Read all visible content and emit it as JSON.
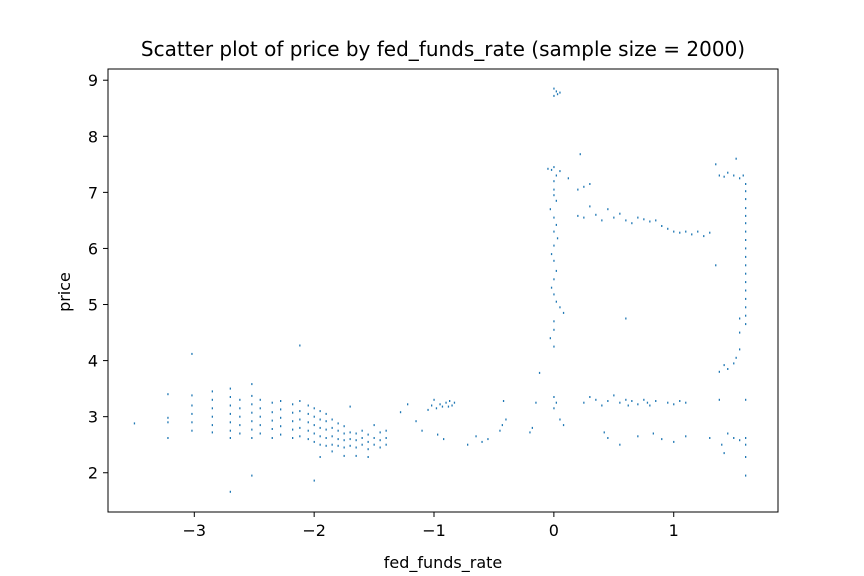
{
  "chart_data": {
    "type": "scatter",
    "title": "Scatter plot of price by fed_funds_rate (sample size = 2000)",
    "xlabel": "fed_funds_rate",
    "ylabel": "price",
    "xlim": [
      -3.72,
      1.87
    ],
    "ylim": [
      1.3,
      9.2
    ],
    "xticks": [
      -3,
      -2,
      -1,
      0,
      1
    ],
    "xtick_labels": [
      "−3",
      "−2",
      "−1",
      "0",
      "1"
    ],
    "yticks": [
      2,
      3,
      4,
      5,
      6,
      7,
      8,
      9
    ],
    "ytick_labels": [
      "2",
      "3",
      "4",
      "5",
      "6",
      "7",
      "8",
      "9"
    ],
    "grid": false,
    "legend": "none",
    "marker": "pixel",
    "color": "#1f77b4",
    "series": [
      {
        "values": [
          [
            -3.5,
            2.88
          ],
          [
            -3.22,
            2.62
          ],
          [
            -3.22,
            2.9
          ],
          [
            -3.22,
            2.98
          ],
          [
            -3.22,
            3.4
          ],
          [
            -3.02,
            4.12
          ],
          [
            -3.02,
            2.75
          ],
          [
            -3.02,
            2.9
          ],
          [
            -3.02,
            3.05
          ],
          [
            -3.02,
            3.2
          ],
          [
            -3.02,
            3.38
          ],
          [
            -2.85,
            2.72
          ],
          [
            -2.85,
            2.85
          ],
          [
            -2.85,
            3.0
          ],
          [
            -2.85,
            3.15
          ],
          [
            -2.85,
            3.3
          ],
          [
            -2.85,
            3.45
          ],
          [
            -2.7,
            2.62
          ],
          [
            -2.7,
            2.75
          ],
          [
            -2.7,
            2.9
          ],
          [
            -2.7,
            3.05
          ],
          [
            -2.7,
            3.2
          ],
          [
            -2.7,
            3.35
          ],
          [
            -2.7,
            3.5
          ],
          [
            -2.7,
            1.66
          ],
          [
            -2.62,
            2.7
          ],
          [
            -2.62,
            2.85
          ],
          [
            -2.62,
            3.0
          ],
          [
            -2.62,
            3.15
          ],
          [
            -2.62,
            3.3
          ],
          [
            -2.52,
            2.62
          ],
          [
            -2.52,
            2.77
          ],
          [
            -2.52,
            2.92
          ],
          [
            -2.52,
            3.07
          ],
          [
            -2.52,
            3.22
          ],
          [
            -2.52,
            3.37
          ],
          [
            -2.52,
            3.58
          ],
          [
            -2.52,
            1.95
          ],
          [
            -2.45,
            2.7
          ],
          [
            -2.45,
            2.85
          ],
          [
            -2.45,
            3.0
          ],
          [
            -2.45,
            3.15
          ],
          [
            -2.45,
            3.3
          ],
          [
            -2.35,
            2.62
          ],
          [
            -2.35,
            2.78
          ],
          [
            -2.35,
            2.93
          ],
          [
            -2.35,
            3.08
          ],
          [
            -2.35,
            3.25
          ],
          [
            -2.28,
            2.68
          ],
          [
            -2.28,
            2.83
          ],
          [
            -2.28,
            2.98
          ],
          [
            -2.28,
            3.13
          ],
          [
            -2.28,
            3.28
          ],
          [
            -2.18,
            2.62
          ],
          [
            -2.18,
            2.77
          ],
          [
            -2.18,
            2.92
          ],
          [
            -2.18,
            3.07
          ],
          [
            -2.18,
            3.22
          ],
          [
            -2.12,
            2.65
          ],
          [
            -2.12,
            2.8
          ],
          [
            -2.12,
            2.95
          ],
          [
            -2.12,
            3.1
          ],
          [
            -2.12,
            3.28
          ],
          [
            -2.12,
            4.27
          ],
          [
            -2.05,
            2.6
          ],
          [
            -2.05,
            2.75
          ],
          [
            -2.05,
            2.9
          ],
          [
            -2.05,
            3.05
          ],
          [
            -2.05,
            3.2
          ],
          [
            -2.0,
            2.55
          ],
          [
            -2.0,
            2.7
          ],
          [
            -2.0,
            2.85
          ],
          [
            -2.0,
            3.0
          ],
          [
            -2.0,
            3.15
          ],
          [
            -2.0,
            1.86
          ],
          [
            -1.95,
            2.5
          ],
          [
            -1.95,
            2.65
          ],
          [
            -1.95,
            2.8
          ],
          [
            -1.95,
            2.95
          ],
          [
            -1.95,
            3.1
          ],
          [
            -1.95,
            2.28
          ],
          [
            -1.9,
            2.48
          ],
          [
            -1.9,
            2.62
          ],
          [
            -1.9,
            2.77
          ],
          [
            -1.9,
            2.92
          ],
          [
            -1.9,
            3.05
          ],
          [
            -1.85,
            2.5
          ],
          [
            -1.85,
            2.65
          ],
          [
            -1.85,
            2.8
          ],
          [
            -1.85,
            2.95
          ],
          [
            -1.85,
            2.38
          ],
          [
            -1.8,
            2.48
          ],
          [
            -1.8,
            2.6
          ],
          [
            -1.8,
            2.75
          ],
          [
            -1.8,
            2.88
          ],
          [
            -1.75,
            2.45
          ],
          [
            -1.75,
            2.58
          ],
          [
            -1.75,
            2.7
          ],
          [
            -1.75,
            2.83
          ],
          [
            -1.75,
            2.3
          ],
          [
            -1.7,
            2.48
          ],
          [
            -1.7,
            2.6
          ],
          [
            -1.7,
            2.72
          ],
          [
            -1.7,
            3.18
          ],
          [
            -1.65,
            2.45
          ],
          [
            -1.65,
            2.58
          ],
          [
            -1.65,
            2.7
          ],
          [
            -1.65,
            2.3
          ],
          [
            -1.6,
            2.5
          ],
          [
            -1.6,
            2.62
          ],
          [
            -1.6,
            2.75
          ],
          [
            -1.55,
            2.42
          ],
          [
            -1.55,
            2.55
          ],
          [
            -1.55,
            2.68
          ],
          [
            -1.55,
            2.28
          ],
          [
            -1.5,
            2.5
          ],
          [
            -1.5,
            2.62
          ],
          [
            -1.5,
            2.85
          ],
          [
            -1.45,
            2.45
          ],
          [
            -1.45,
            2.58
          ],
          [
            -1.45,
            2.72
          ],
          [
            -1.4,
            2.5
          ],
          [
            -1.4,
            2.62
          ],
          [
            -1.4,
            2.75
          ],
          [
            -1.28,
            3.08
          ],
          [
            -1.22,
            3.22
          ],
          [
            -1.15,
            2.92
          ],
          [
            -1.1,
            2.75
          ],
          [
            -1.05,
            3.12
          ],
          [
            -1.02,
            3.2
          ],
          [
            -1.0,
            3.3
          ],
          [
            -0.98,
            3.15
          ],
          [
            -0.95,
            3.22
          ],
          [
            -0.93,
            3.18
          ],
          [
            -0.9,
            3.25
          ],
          [
            -0.88,
            3.18
          ],
          [
            -0.87,
            3.28
          ],
          [
            -0.85,
            3.2
          ],
          [
            -0.83,
            3.25
          ],
          [
            -0.97,
            2.68
          ],
          [
            -0.92,
            2.6
          ],
          [
            -0.72,
            2.5
          ],
          [
            -0.65,
            2.65
          ],
          [
            -0.6,
            2.55
          ],
          [
            -0.55,
            2.6
          ],
          [
            -0.45,
            2.75
          ],
          [
            -0.43,
            2.85
          ],
          [
            -0.42,
            3.28
          ],
          [
            -0.4,
            2.95
          ],
          [
            -0.2,
            2.72
          ],
          [
            -0.18,
            2.8
          ],
          [
            -0.15,
            3.25
          ],
          [
            -0.12,
            3.78
          ],
          [
            0.0,
            8.85
          ],
          [
            0.02,
            8.8
          ],
          [
            0.03,
            8.75
          ],
          [
            0.0,
            8.72
          ],
          [
            0.05,
            8.78
          ],
          [
            -0.05,
            7.42
          ],
          [
            -0.02,
            7.4
          ],
          [
            0.0,
            7.45
          ],
          [
            0.02,
            7.3
          ],
          [
            0.05,
            7.38
          ],
          [
            0.0,
            7.2
          ],
          [
            0.0,
            7.05
          ],
          [
            0.0,
            6.95
          ],
          [
            0.02,
            6.85
          ],
          [
            -0.03,
            6.7
          ],
          [
            0.0,
            6.55
          ],
          [
            0.02,
            6.42
          ],
          [
            0.0,
            6.3
          ],
          [
            0.03,
            6.18
          ],
          [
            0.0,
            6.05
          ],
          [
            -0.02,
            5.9
          ],
          [
            0.0,
            5.78
          ],
          [
            0.02,
            5.6
          ],
          [
            0.0,
            5.45
          ],
          [
            -0.02,
            5.3
          ],
          [
            0.0,
            5.18
          ],
          [
            0.02,
            5.05
          ],
          [
            0.05,
            4.95
          ],
          [
            0.08,
            4.85
          ],
          [
            0.0,
            4.7
          ],
          [
            0.0,
            4.55
          ],
          [
            -0.03,
            4.4
          ],
          [
            0.0,
            4.25
          ],
          [
            0.0,
            3.35
          ],
          [
            0.02,
            3.25
          ],
          [
            0.0,
            3.15
          ],
          [
            0.05,
            2.95
          ],
          [
            0.08,
            2.85
          ],
          [
            0.12,
            7.25
          ],
          [
            0.2,
            7.05
          ],
          [
            0.22,
            7.68
          ],
          [
            0.25,
            7.1
          ],
          [
            0.3,
            7.15
          ],
          [
            0.2,
            6.58
          ],
          [
            0.25,
            6.55
          ],
          [
            0.3,
            6.75
          ],
          [
            0.35,
            6.6
          ],
          [
            0.4,
            6.5
          ],
          [
            0.45,
            6.7
          ],
          [
            0.5,
            6.55
          ],
          [
            0.55,
            6.62
          ],
          [
            0.6,
            6.5
          ],
          [
            0.65,
            6.45
          ],
          [
            0.7,
            6.55
          ],
          [
            0.75,
            6.52
          ],
          [
            0.8,
            6.48
          ],
          [
            0.85,
            6.5
          ],
          [
            0.9,
            6.4
          ],
          [
            0.95,
            6.35
          ],
          [
            1.0,
            6.3
          ],
          [
            1.05,
            6.28
          ],
          [
            1.1,
            6.3
          ],
          [
            1.15,
            6.25
          ],
          [
            1.2,
            6.3
          ],
          [
            1.25,
            6.22
          ],
          [
            1.3,
            6.28
          ],
          [
            1.35,
            7.5
          ],
          [
            1.38,
            7.3
          ],
          [
            1.42,
            7.28
          ],
          [
            1.45,
            7.35
          ],
          [
            1.5,
            7.3
          ],
          [
            1.55,
            7.25
          ],
          [
            1.58,
            7.3
          ],
          [
            1.52,
            7.6
          ],
          [
            1.6,
            7.15
          ],
          [
            1.6,
            7.02
          ],
          [
            1.6,
            6.88
          ],
          [
            1.6,
            6.72
          ],
          [
            1.6,
            6.58
          ],
          [
            1.6,
            6.45
          ],
          [
            1.6,
            6.3
          ],
          [
            1.6,
            6.15
          ],
          [
            1.6,
            6.0
          ],
          [
            1.6,
            5.85
          ],
          [
            1.6,
            5.7
          ],
          [
            1.6,
            5.55
          ],
          [
            1.6,
            5.4
          ],
          [
            1.6,
            5.25
          ],
          [
            1.6,
            5.1
          ],
          [
            1.6,
            4.95
          ],
          [
            1.6,
            4.8
          ],
          [
            1.6,
            4.65
          ],
          [
            1.55,
            4.75
          ],
          [
            1.55,
            4.5
          ],
          [
            1.55,
            4.2
          ],
          [
            1.52,
            4.05
          ],
          [
            1.5,
            3.95
          ],
          [
            1.45,
            3.85
          ],
          [
            1.42,
            3.92
          ],
          [
            1.38,
            3.8
          ],
          [
            1.35,
            5.7
          ],
          [
            0.25,
            3.25
          ],
          [
            0.3,
            3.35
          ],
          [
            0.35,
            3.3
          ],
          [
            0.4,
            3.2
          ],
          [
            0.45,
            3.28
          ],
          [
            0.5,
            3.38
          ],
          [
            0.55,
            3.25
          ],
          [
            0.6,
            3.3
          ],
          [
            0.62,
            3.2
          ],
          [
            0.65,
            3.28
          ],
          [
            0.7,
            3.22
          ],
          [
            0.75,
            3.3
          ],
          [
            0.78,
            3.25
          ],
          [
            0.8,
            3.2
          ],
          [
            0.85,
            3.28
          ],
          [
            0.95,
            3.25
          ],
          [
            1.0,
            3.22
          ],
          [
            1.05,
            3.28
          ],
          [
            1.1,
            3.25
          ],
          [
            1.38,
            3.3
          ],
          [
            1.6,
            3.3
          ],
          [
            0.6,
            4.75
          ],
          [
            0.42,
            2.72
          ],
          [
            0.45,
            2.62
          ],
          [
            0.55,
            2.5
          ],
          [
            0.7,
            2.65
          ],
          [
            0.83,
            2.7
          ],
          [
            0.9,
            2.6
          ],
          [
            1.0,
            2.55
          ],
          [
            1.1,
            2.65
          ],
          [
            1.3,
            2.62
          ],
          [
            1.4,
            2.5
          ],
          [
            1.42,
            2.35
          ],
          [
            1.45,
            2.7
          ],
          [
            1.5,
            2.62
          ],
          [
            1.55,
            2.58
          ],
          [
            1.6,
            2.62
          ],
          [
            1.6,
            2.5
          ],
          [
            1.6,
            2.28
          ],
          [
            1.6,
            1.95
          ]
        ]
      }
    ]
  }
}
